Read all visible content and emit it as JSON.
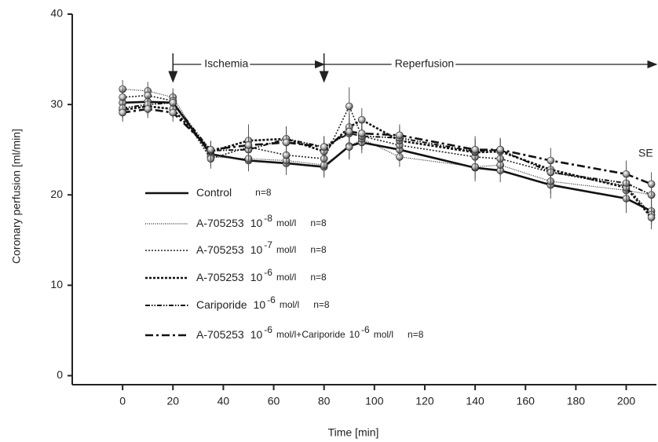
{
  "chart_data": {
    "type": "line",
    "xlabel": "Time [min]",
    "ylabel": "Coronary perfusion [ml/min]",
    "x": [
      0,
      10,
      20,
      35,
      50,
      65,
      80,
      90,
      95,
      110,
      140,
      150,
      170,
      200,
      210
    ],
    "xlim": [
      -20,
      212
    ],
    "xticks": [
      0,
      20,
      40,
      60,
      80,
      100,
      120,
      140,
      160,
      180,
      200
    ],
    "ylim": [
      -1,
      40
    ],
    "yticks": [
      0,
      10,
      20,
      30,
      40
    ],
    "series": [
      {
        "name": "Control",
        "color": "#111111",
        "dash": "none",
        "width": 2.6,
        "legend_extra": [],
        "n": "n=8",
        "values": [
          30.2,
          30.3,
          30.2,
          24.5,
          23.8,
          23.5,
          23.1,
          25.4,
          25.8,
          25,
          23,
          22.7,
          21.1,
          19.6,
          18.2
        ],
        "errors": [
          1.2,
          1.0,
          1.1,
          1.0,
          1.2,
          1.3,
          1.2,
          1.5,
          1.2,
          1.2,
          1.5,
          1.3,
          1.5,
          1.6,
          1.4
        ]
      },
      {
        "name": "A-705253",
        "color": "#222222",
        "dash": "1,1.5",
        "width": 1.2,
        "legend_extra": [
          {
            "text": "10"
          },
          {
            "sup": "-8"
          },
          {
            "text": "mol/l"
          }
        ],
        "n": "n=8",
        "values": [
          31.7,
          31.5,
          30.8,
          24.2,
          24,
          23.8,
          23.3,
          25.3,
          26.2,
          24.2,
          23.1,
          23.3,
          21.5,
          20.5,
          20
        ],
        "errors": [
          1.0,
          1.0,
          1.0,
          1.0,
          1.2,
          1.1,
          1.2,
          1.3,
          1.2,
          1.1,
          1.3,
          1.2,
          1.4,
          1.5,
          1.3
        ]
      },
      {
        "name": "A-705253",
        "color": "#222222",
        "dash": "2,2",
        "width": 1.6,
        "legend_extra": [
          {
            "text": "10"
          },
          {
            "sup": "-7"
          },
          {
            "text": "mol/l"
          }
        ],
        "n": "n=8",
        "values": [
          30.8,
          31,
          30.4,
          24,
          25.3,
          24.4,
          24,
          29.8,
          26.5,
          25.5,
          24.2,
          24,
          22.5,
          21,
          17.8
        ],
        "errors": [
          1.1,
          1.0,
          1.0,
          1.1,
          2.5,
          1.2,
          1.3,
          2.1,
          1.5,
          1.2,
          2.3,
          1.3,
          1.6,
          1.9,
          1.2
        ]
      },
      {
        "name": "A-705253",
        "color": "#111111",
        "dash": "3,2",
        "width": 2.6,
        "legend_extra": [
          {
            "text": "10"
          },
          {
            "sup": "-6"
          },
          {
            "text": "mol/l"
          }
        ],
        "n": "n=8",
        "values": [
          29.4,
          29.8,
          29.5,
          24.8,
          26,
          26.2,
          24.8,
          27.5,
          28.3,
          26,
          24.7,
          24.8,
          22.8,
          20.8,
          17.5
        ],
        "errors": [
          1.0,
          1.0,
          1.0,
          1.0,
          1.3,
          1.4,
          1.2,
          1.5,
          1.3,
          1.2,
          1.4,
          1.3,
          1.5,
          1.6,
          1.3
        ]
      },
      {
        "name": "Cariporide",
        "color": "#111111",
        "dash": "6,2,1.5,2,1.5,2",
        "width": 2,
        "legend_extra": [
          {
            "text": "10"
          },
          {
            "sup": "-6"
          },
          {
            "text": "mol/l"
          }
        ],
        "n": "n=8",
        "values": [
          29.6,
          30,
          30.2,
          24.9,
          25,
          26.2,
          25.3,
          26.8,
          26.5,
          26.3,
          24.8,
          25,
          22.5,
          21.3,
          20
        ],
        "errors": [
          1.0,
          1.0,
          1.0,
          1.0,
          1.2,
          1.3,
          1.2,
          1.4,
          1.2,
          1.2,
          1.3,
          1.3,
          1.4,
          1.5,
          1.3
        ]
      },
      {
        "name": "A-705253",
        "color": "#111111",
        "dash": "10,4,3,4",
        "width": 2.6,
        "legend_extra": [
          {
            "text": "10"
          },
          {
            "sup": "-6"
          },
          {
            "text": "mol/l+Cariporide"
          },
          {
            "text": "10"
          },
          {
            "sup": "-6"
          },
          {
            "text": "mol/l"
          }
        ],
        "n": "n=8",
        "values": [
          29.1,
          29.5,
          29.1,
          25,
          25.5,
          25.8,
          25.3,
          27,
          26.8,
          26.6,
          25,
          25,
          23.8,
          22.3,
          21.2
        ],
        "errors": [
          1.0,
          1.0,
          1.0,
          1.0,
          1.2,
          1.2,
          1.2,
          1.4,
          1.2,
          1.2,
          1.3,
          1.3,
          1.4,
          1.5,
          1.3
        ]
      }
    ],
    "phases": [
      {
        "label": "Ischemia",
        "start": 20,
        "end": 80
      },
      {
        "label": "Reperfusion",
        "start": 80,
        "end": 212
      }
    ],
    "annotation": "SE"
  }
}
